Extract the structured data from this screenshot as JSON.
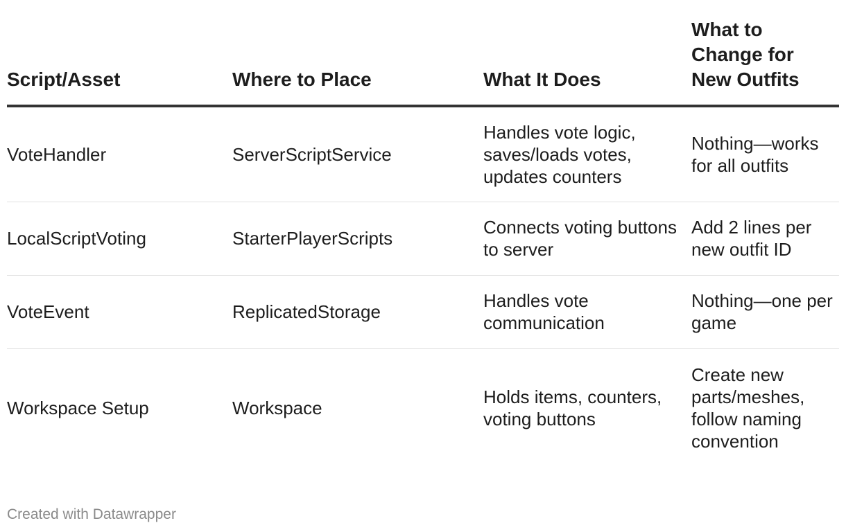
{
  "chart_data": {
    "type": "table",
    "columns": [
      "Script/Asset",
      "Where to Place",
      "What It Does",
      "What to Change for New Outfits"
    ],
    "rows": [
      [
        "VoteHandler",
        "ServerScriptService",
        "Handles vote logic, saves/loads votes, updates counters",
        "Nothing—works for all outfits"
      ],
      [
        "LocalScriptVoting",
        "StarterPlayerScripts",
        "Connects voting buttons to server",
        "Add 2 lines per new outfit ID"
      ],
      [
        "VoteEvent",
        "ReplicatedStorage",
        "Handles vote communication",
        "Nothing—one per game"
      ],
      [
        "Workspace Setup",
        "Workspace",
        "Holds items, counters, voting buttons",
        "Create new parts/meshes, follow naming convention"
      ]
    ]
  },
  "footer": {
    "credit": "Created with Datawrapper"
  },
  "colors": {
    "text": "#1d1d1d",
    "header_rule": "#333333",
    "row_rule": "#e0e0e0",
    "footer_text": "#8a8a8a"
  }
}
